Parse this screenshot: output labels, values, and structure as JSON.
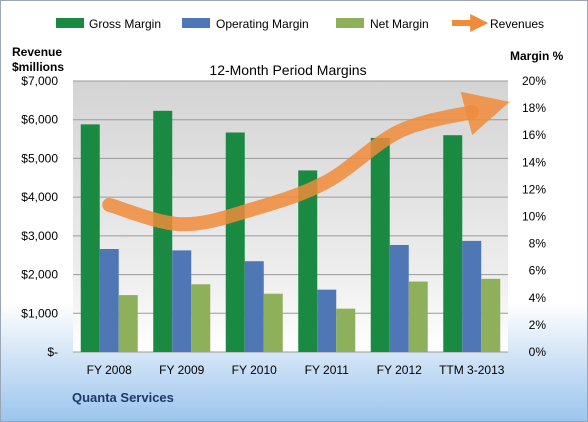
{
  "chart_data": {
    "type": "bar",
    "title": "12-Month Period Margins",
    "categories": [
      "FY 2008",
      "FY 2009",
      "FY 2010",
      "FY 2011",
      "FY 2012",
      "TTM 3-2013"
    ],
    "series": [
      {
        "name": "Gross Margin",
        "axis": "right",
        "color": "#1a8a42",
        "values": [
          16.8,
          17.8,
          16.2,
          13.4,
          15.8,
          16.0
        ]
      },
      {
        "name": "Operating Margin",
        "axis": "right",
        "color": "#4f77b6",
        "values": [
          7.6,
          7.5,
          6.7,
          4.6,
          7.9,
          8.2
        ]
      },
      {
        "name": "Net Margin",
        "axis": "right",
        "color": "#8fb05a",
        "values": [
          4.2,
          5.0,
          4.3,
          3.2,
          5.2,
          5.4
        ]
      },
      {
        "name": "Revenues",
        "axis": "left",
        "type": "line",
        "color": "#f08b3a",
        "values": [
          3800,
          3300,
          3700,
          4400,
          5700,
          6200
        ]
      }
    ],
    "left_axis": {
      "label_line1": "Revenue",
      "label_line2": "$millions",
      "ylim": [
        0,
        7000
      ],
      "ticks": [
        "$-",
        "$1,000",
        "$2,000",
        "$3,000",
        "$4,000",
        "$5,000",
        "$6,000",
        "$7,000"
      ]
    },
    "right_axis": {
      "label": "Margin %",
      "ylim": [
        0,
        20
      ],
      "ticks": [
        "0%",
        "2%",
        "4%",
        "6%",
        "8%",
        "10%",
        "12%",
        "14%",
        "16%",
        "18%",
        "20%"
      ]
    },
    "grid": true,
    "legend": "top",
    "footer": "Quanta Services"
  }
}
